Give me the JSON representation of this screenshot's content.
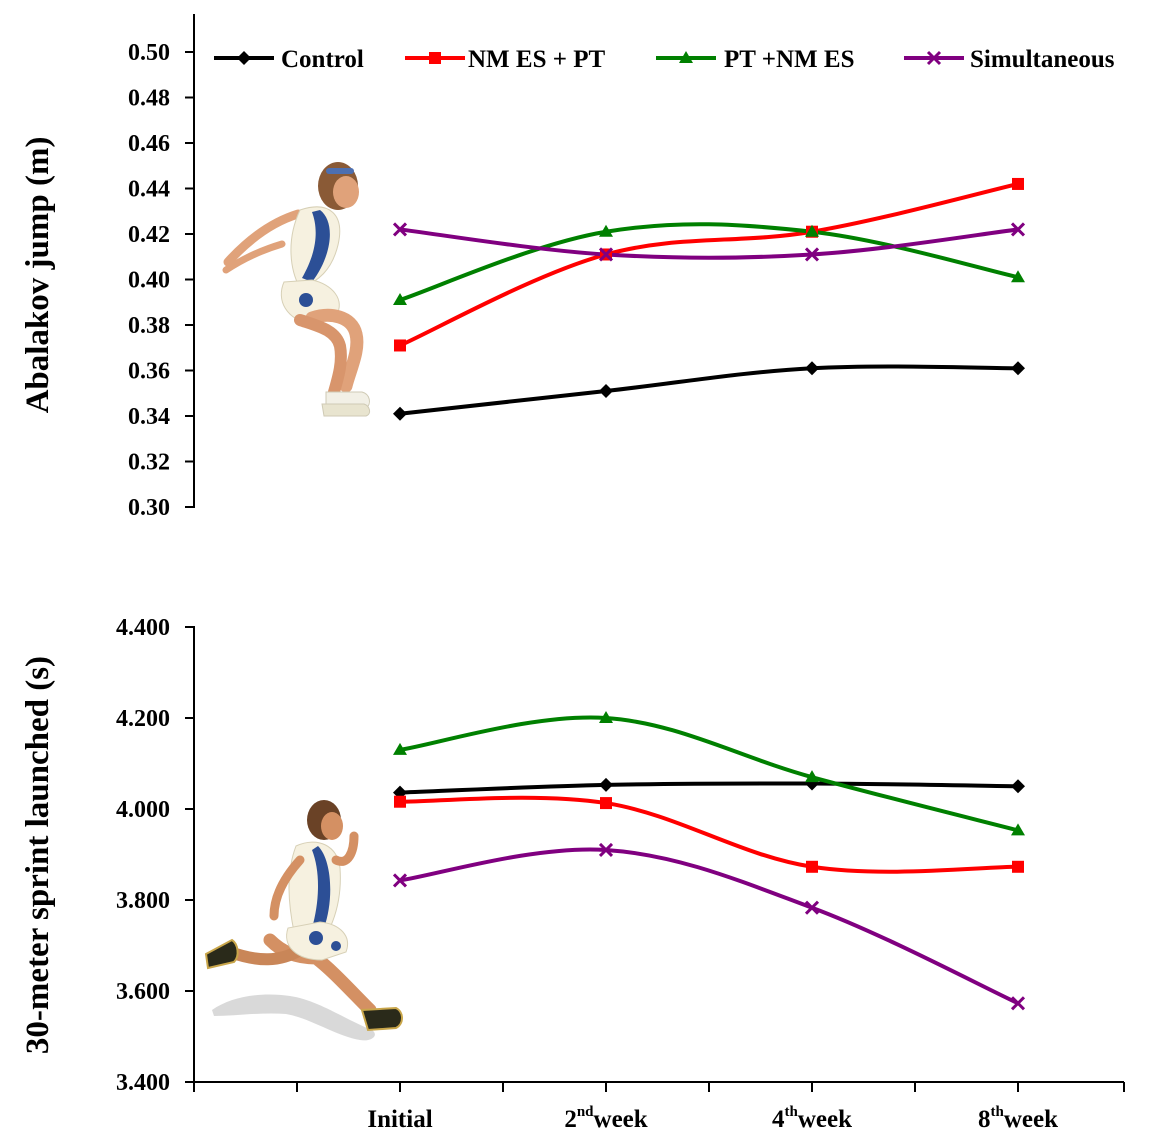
{
  "colors": {
    "control": "#000000",
    "nmes_pt": "#ff0000",
    "pt_nmes": "#008000",
    "simultaneous": "#800080",
    "axis": "#000000"
  },
  "illustrations": {
    "top": "jumping-athlete-figure",
    "bottom": "sprinting-athlete-figure"
  },
  "chart_data": [
    {
      "type": "line",
      "ylabel": "Abalakov jump (m)",
      "ylim": [
        0.3,
        0.5
      ],
      "yticks": [
        "0.30",
        "0.32",
        "0.34",
        "0.36",
        "0.38",
        "0.40",
        "0.42",
        "0.44",
        "0.46",
        "0.48",
        "0.50"
      ],
      "categories": [
        "Initial",
        "2nd week",
        "4th week",
        "8th week"
      ],
      "legend_position": "top",
      "series": [
        {
          "key": "control",
          "name": "Control",
          "marker": "diamond",
          "values": [
            0.341,
            0.351,
            0.361,
            0.361
          ]
        },
        {
          "key": "nmes_pt",
          "name": "NM ES + PT",
          "marker": "square",
          "values": [
            0.371,
            0.411,
            0.421,
            0.442
          ]
        },
        {
          "key": "pt_nmes",
          "name": "PT +NM ES",
          "marker": "triangle",
          "values": [
            0.391,
            0.421,
            0.421,
            0.401
          ]
        },
        {
          "key": "simultaneous",
          "name": "Simultaneous",
          "marker": "x",
          "values": [
            0.422,
            0.411,
            0.411,
            0.422
          ]
        }
      ]
    },
    {
      "type": "line",
      "ylabel": "30-meter sprint launched (s)",
      "ylim": [
        3.4,
        4.4
      ],
      "yticks": [
        "3.400",
        "3.600",
        "3.800",
        "4.000",
        "4.200",
        "4.400"
      ],
      "categories": [
        "Initial",
        "2nd week",
        "4th week",
        "8th week"
      ],
      "xaxis": {
        "labels": [
          {
            "pre": "Initial",
            "sup": "",
            "post": ""
          },
          {
            "pre": "2",
            "sup": "nd",
            "post": "week"
          },
          {
            "pre": "4",
            "sup": "th",
            "post": "week"
          },
          {
            "pre": "8",
            "sup": "th",
            "post": "week"
          }
        ]
      },
      "series": [
        {
          "key": "control",
          "name": "Control",
          "marker": "diamond",
          "values": [
            4.036,
            4.053,
            4.056,
            4.05
          ]
        },
        {
          "key": "nmes_pt",
          "name": "NM ES + PT",
          "marker": "square",
          "values": [
            4.016,
            4.013,
            3.873,
            3.873
          ]
        },
        {
          "key": "pt_nmes",
          "name": "PT +NM ES",
          "marker": "triangle",
          "values": [
            4.13,
            4.2,
            4.07,
            3.953
          ]
        },
        {
          "key": "simultaneous",
          "name": "Simultaneous",
          "marker": "x",
          "values": [
            3.843,
            3.91,
            3.783,
            3.573
          ]
        }
      ]
    }
  ]
}
